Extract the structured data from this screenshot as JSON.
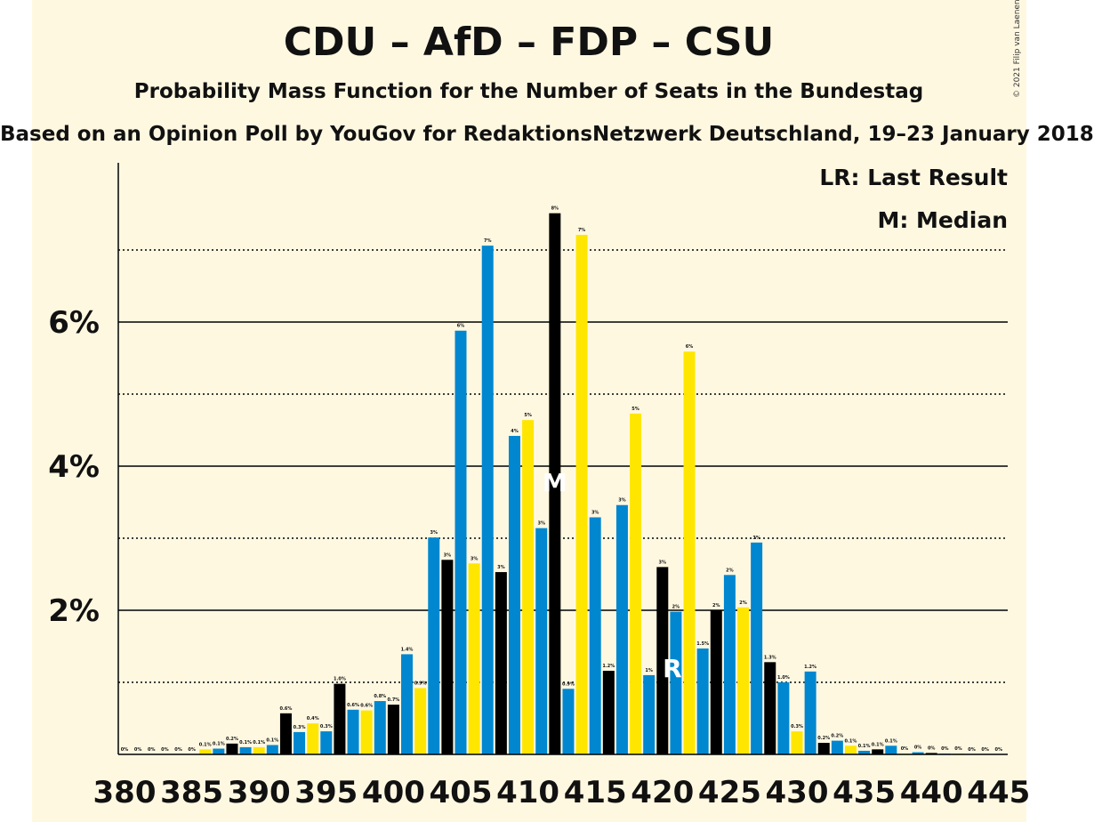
{
  "title": "CDU – AfD – FDP – CSU",
  "subtitle": "Probability Mass Function for the Number of Seats in the Bundestag",
  "subtitle2": "Based on an Opinion Poll by YouGov for RedaktionsNetzwerk Deutschland, 19–23 January 2018",
  "copyright": "© 2021 Filip van Laenen",
  "legend": {
    "last_result": "LR: Last Result",
    "median": "M: Median"
  },
  "colors": {
    "blue": "#0087d0",
    "black": "#000000",
    "yellow": "#ffe600",
    "background": "#fff8e1"
  },
  "chart_data": {
    "type": "bar",
    "title": "CDU – AfD – FDP – CSU",
    "xlabel": "",
    "ylabel": "",
    "x_ticks": [
      380,
      385,
      390,
      395,
      400,
      405,
      410,
      415,
      420,
      425,
      430,
      435,
      440,
      445
    ],
    "y_ticks": [
      {
        "value": 2,
        "label": "2%"
      },
      {
        "value": 4,
        "label": "4%"
      },
      {
        "value": 6,
        "label": "6%"
      }
    ],
    "ylim": [
      0,
      8
    ],
    "grid": "dotted at odd %, solid at even %",
    "median_seat": 412,
    "last_result_seat": 421,
    "median_marker": "M",
    "last_result_marker": "R",
    "bars": [
      {
        "seat": 380,
        "value": 0,
        "label": "0%",
        "color": "black"
      },
      {
        "seat": 381,
        "value": 0,
        "label": "0%",
        "color": "yellow"
      },
      {
        "seat": 382,
        "value": 0,
        "label": "0%",
        "color": "blue"
      },
      {
        "seat": 383,
        "value": 0,
        "label": "0%",
        "color": "black"
      },
      {
        "seat": 384,
        "value": 0,
        "label": "0%",
        "color": "yellow"
      },
      {
        "seat": 385,
        "value": 0,
        "label": "0%",
        "color": "blue"
      },
      {
        "seat": 386,
        "value": 0.07,
        "label": "0.1%",
        "color": "yellow"
      },
      {
        "seat": 387,
        "value": 0.08,
        "label": "0.1%",
        "color": "blue"
      },
      {
        "seat": 388,
        "value": 0.15,
        "label": "0.2%",
        "color": "black"
      },
      {
        "seat": 389,
        "value": 0.1,
        "label": "0.1%",
        "color": "blue"
      },
      {
        "seat": 390,
        "value": 0.1,
        "label": "0.1%",
        "color": "yellow"
      },
      {
        "seat": 391,
        "value": 0.13,
        "label": "0.1%",
        "color": "blue"
      },
      {
        "seat": 392,
        "value": 0.57,
        "label": "0.6%",
        "color": "black"
      },
      {
        "seat": 393,
        "value": 0.31,
        "label": "0.3%",
        "color": "blue"
      },
      {
        "seat": 394,
        "value": 0.43,
        "label": "0.4%",
        "color": "yellow"
      },
      {
        "seat": 395,
        "value": 0.32,
        "label": "0.3%",
        "color": "blue"
      },
      {
        "seat": 396,
        "value": 0.98,
        "label": "1.0%",
        "color": "black"
      },
      {
        "seat": 397,
        "value": 0.62,
        "label": "0.6%",
        "color": "blue"
      },
      {
        "seat": 398,
        "value": 0.61,
        "label": "0.6%",
        "color": "yellow"
      },
      {
        "seat": 399,
        "value": 0.74,
        "label": "0.8%",
        "color": "blue"
      },
      {
        "seat": 400,
        "value": 0.69,
        "label": "0.7%",
        "color": "black"
      },
      {
        "seat": 401,
        "value": 1.39,
        "label": "1.4%",
        "color": "blue"
      },
      {
        "seat": 402,
        "value": 0.92,
        "label": "0.9%",
        "color": "yellow"
      },
      {
        "seat": 403,
        "value": 3.01,
        "label": "3%",
        "color": "blue"
      },
      {
        "seat": 404,
        "value": 2.7,
        "label": "3%",
        "color": "black"
      },
      {
        "seat": 405,
        "value": 5.88,
        "label": "6%",
        "color": "blue"
      },
      {
        "seat": 406,
        "value": 2.65,
        "label": "3%",
        "color": "yellow"
      },
      {
        "seat": 407,
        "value": 7.06,
        "label": "7%",
        "color": "blue"
      },
      {
        "seat": 408,
        "value": 2.53,
        "label": "3%",
        "color": "black"
      },
      {
        "seat": 409,
        "value": 4.42,
        "label": "4%",
        "color": "blue"
      },
      {
        "seat": 410,
        "value": 4.64,
        "label": "5%",
        "color": "yellow"
      },
      {
        "seat": 411,
        "value": 3.14,
        "label": "3%",
        "color": "blue"
      },
      {
        "seat": 412,
        "value": 7.51,
        "label": "8%",
        "color": "black"
      },
      {
        "seat": 413,
        "value": 0.91,
        "label": "0.9%",
        "color": "blue"
      },
      {
        "seat": 414,
        "value": 7.21,
        "label": "7%",
        "color": "yellow"
      },
      {
        "seat": 415,
        "value": 3.29,
        "label": "3%",
        "color": "blue"
      },
      {
        "seat": 416,
        "value": 1.16,
        "label": "1.2%",
        "color": "black"
      },
      {
        "seat": 417,
        "value": 3.46,
        "label": "3%",
        "color": "blue"
      },
      {
        "seat": 418,
        "value": 4.73,
        "label": "5%",
        "color": "yellow"
      },
      {
        "seat": 419,
        "value": 1.1,
        "label": "1%",
        "color": "blue"
      },
      {
        "seat": 420,
        "value": 2.6,
        "label": "3%",
        "color": "black"
      },
      {
        "seat": 421,
        "value": 1.98,
        "label": "2%",
        "color": "blue"
      },
      {
        "seat": 422,
        "value": 5.59,
        "label": "6%",
        "color": "yellow"
      },
      {
        "seat": 423,
        "value": 1.47,
        "label": "1.5%",
        "color": "blue"
      },
      {
        "seat": 424,
        "value": 2.0,
        "label": "2%",
        "color": "black"
      },
      {
        "seat": 425,
        "value": 2.49,
        "label": "2%",
        "color": "blue"
      },
      {
        "seat": 426,
        "value": 2.04,
        "label": "2%",
        "color": "yellow"
      },
      {
        "seat": 427,
        "value": 2.94,
        "label": "3%",
        "color": "blue"
      },
      {
        "seat": 428,
        "value": 1.28,
        "label": "1.3%",
        "color": "black"
      },
      {
        "seat": 429,
        "value": 1.0,
        "label": "1.0%",
        "color": "blue"
      },
      {
        "seat": 430,
        "value": 0.32,
        "label": "0.3%",
        "color": "yellow"
      },
      {
        "seat": 431,
        "value": 1.15,
        "label": "1.2%",
        "color": "blue"
      },
      {
        "seat": 432,
        "value": 0.16,
        "label": "0.2%",
        "color": "black"
      },
      {
        "seat": 433,
        "value": 0.19,
        "label": "0.2%",
        "color": "blue"
      },
      {
        "seat": 434,
        "value": 0.12,
        "label": "0.1%",
        "color": "yellow"
      },
      {
        "seat": 435,
        "value": 0.05,
        "label": "0.1%",
        "color": "blue"
      },
      {
        "seat": 436,
        "value": 0.07,
        "label": "0.1%",
        "color": "black"
      },
      {
        "seat": 437,
        "value": 0.12,
        "label": "0.1%",
        "color": "blue"
      },
      {
        "seat": 438,
        "value": 0.01,
        "label": "0%",
        "color": "yellow"
      },
      {
        "seat": 439,
        "value": 0.03,
        "label": "0%",
        "color": "blue"
      },
      {
        "seat": 440,
        "value": 0.02,
        "label": "0%",
        "color": "black"
      },
      {
        "seat": 441,
        "value": 0.01,
        "label": "0%",
        "color": "blue"
      },
      {
        "seat": 442,
        "value": 0.01,
        "label": "0%",
        "color": "yellow"
      },
      {
        "seat": 443,
        "value": 0,
        "label": "0%",
        "color": "blue"
      },
      {
        "seat": 444,
        "value": 0,
        "label": "0%",
        "color": "black"
      },
      {
        "seat": 445,
        "value": 0,
        "label": "0%",
        "color": "blue"
      }
    ]
  }
}
